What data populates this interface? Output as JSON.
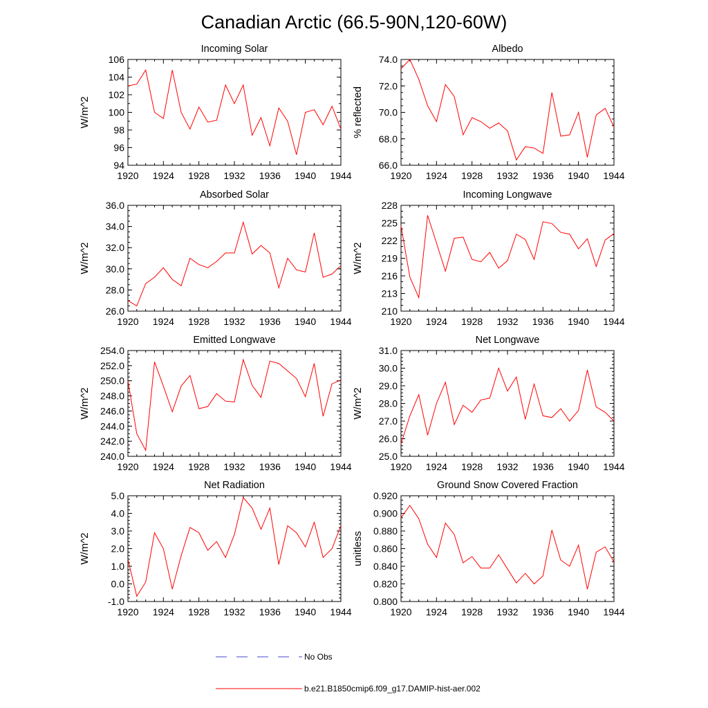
{
  "title": "Canadian Arctic (66.5-90N,120-60W)",
  "legend": [
    {
      "label": "No Obs",
      "color": "#4444cc",
      "style": "dashed"
    },
    {
      "label": "b.e21.B1850cmip6.f09_g17.DAMIP-hist-aer.002",
      "color": "#ff0000",
      "style": "solid"
    }
  ],
  "chart_data": [
    {
      "type": "line",
      "title": "Incoming Solar",
      "ylabel": "W/m^2",
      "xlim": [
        1920,
        1944
      ],
      "ylim": [
        94,
        106
      ],
      "xticks": [
        1920,
        1924,
        1928,
        1932,
        1936,
        1940,
        1944
      ],
      "yticks": [
        94,
        96,
        98,
        100,
        102,
        104,
        106
      ],
      "ytick_labels": [
        "94",
        "96",
        "98",
        "100",
        "102",
        "104",
        "106"
      ],
      "ytick_minor_step": 1,
      "grid": false,
      "series": [
        {
          "color": "#ff0000",
          "x": [
            1920,
            1921,
            1922,
            1923,
            1924,
            1925,
            1926,
            1927,
            1928,
            1929,
            1930,
            1931,
            1932,
            1933,
            1934,
            1935,
            1936,
            1937,
            1938,
            1939,
            1940,
            1941,
            1942,
            1943,
            1944
          ],
          "y": [
            103.0,
            103.2,
            104.8,
            100.0,
            99.3,
            104.8,
            100.0,
            98.1,
            100.6,
            98.9,
            99.1,
            103.1,
            101.0,
            103.1,
            97.4,
            99.4,
            96.2,
            100.5,
            99.0,
            95.2,
            100.0,
            100.3,
            98.6,
            100.7,
            98.1
          ]
        }
      ]
    },
    {
      "type": "line",
      "title": "Albedo",
      "ylabel": "% reflected",
      "xlim": [
        1920,
        1944
      ],
      "ylim": [
        66.0,
        74.0
      ],
      "xticks": [
        1920,
        1924,
        1928,
        1932,
        1936,
        1940,
        1944
      ],
      "yticks": [
        66,
        68,
        70,
        72,
        74
      ],
      "ytick_labels": [
        "66.0",
        "68.0",
        "70.0",
        "72.0",
        "74.0"
      ],
      "ytick_minor_step": 0.5,
      "grid": false,
      "series": [
        {
          "color": "#ff0000",
          "x": [
            1920,
            1921,
            1922,
            1923,
            1924,
            1925,
            1926,
            1927,
            1928,
            1929,
            1930,
            1931,
            1932,
            1933,
            1934,
            1935,
            1936,
            1937,
            1938,
            1939,
            1940,
            1941,
            1942,
            1943,
            1944
          ],
          "y": [
            73.3,
            74.0,
            72.5,
            70.5,
            69.3,
            72.1,
            71.2,
            68.3,
            69.6,
            69.3,
            68.8,
            69.2,
            68.6,
            66.4,
            67.4,
            67.3,
            66.9,
            71.5,
            68.2,
            68.3,
            70.0,
            66.6,
            69.8,
            70.3,
            68.9
          ]
        }
      ]
    },
    {
      "type": "line",
      "title": "Absorbed Solar",
      "ylabel": "W/m^2",
      "xlim": [
        1920,
        1944
      ],
      "ylim": [
        26.0,
        36.0
      ],
      "xticks": [
        1920,
        1924,
        1928,
        1932,
        1936,
        1940,
        1944
      ],
      "yticks": [
        26,
        28,
        30,
        32,
        34,
        36
      ],
      "ytick_labels": [
        "26.0",
        "28.0",
        "30.0",
        "32.0",
        "34.0",
        "36.0"
      ],
      "ytick_minor_step": 0.5,
      "grid": false,
      "series": [
        {
          "color": "#ff0000",
          "x": [
            1920,
            1921,
            1922,
            1923,
            1924,
            1925,
            1926,
            1927,
            1928,
            1929,
            1930,
            1931,
            1932,
            1933,
            1934,
            1935,
            1936,
            1937,
            1938,
            1939,
            1940,
            1941,
            1942,
            1943,
            1944
          ],
          "y": [
            27.0,
            26.5,
            28.6,
            29.2,
            30.1,
            29.0,
            28.4,
            31.0,
            30.4,
            30.1,
            30.7,
            31.5,
            31.5,
            34.4,
            31.4,
            32.2,
            31.5,
            28.2,
            31.0,
            29.9,
            29.7,
            33.4,
            29.2,
            29.5,
            30.3
          ]
        }
      ]
    },
    {
      "type": "line",
      "title": "Incoming Longwave",
      "ylabel": "W/m^2",
      "xlim": [
        1920,
        1944
      ],
      "ylim": [
        210,
        228
      ],
      "xticks": [
        1920,
        1924,
        1928,
        1932,
        1936,
        1940,
        1944
      ],
      "yticks": [
        210,
        213,
        216,
        219,
        222,
        225,
        228
      ],
      "ytick_labels": [
        "210",
        "213",
        "216",
        "219",
        "222",
        "225",
        "228"
      ],
      "ytick_minor_step": 1,
      "grid": false,
      "series": [
        {
          "color": "#ff0000",
          "x": [
            1920,
            1921,
            1922,
            1923,
            1924,
            1925,
            1926,
            1927,
            1928,
            1929,
            1930,
            1931,
            1932,
            1933,
            1934,
            1935,
            1936,
            1937,
            1938,
            1939,
            1940,
            1941,
            1942,
            1943,
            1944
          ],
          "y": [
            224.5,
            215.8,
            212.3,
            226.3,
            221.6,
            216.8,
            222.4,
            222.6,
            218.8,
            218.4,
            220.0,
            217.3,
            218.6,
            223.1,
            222.2,
            218.8,
            225.2,
            224.9,
            223.4,
            223.1,
            220.6,
            222.3,
            217.6,
            222.1,
            223.2
          ]
        }
      ]
    },
    {
      "type": "line",
      "title": "Emitted Longwave",
      "ylabel": "W/m^2",
      "xlim": [
        1920,
        1944
      ],
      "ylim": [
        240.0,
        254.0
      ],
      "xticks": [
        1920,
        1924,
        1928,
        1932,
        1936,
        1940,
        1944
      ],
      "yticks": [
        240,
        242,
        244,
        246,
        248,
        250,
        252,
        254
      ],
      "ytick_labels": [
        "240.0",
        "242.0",
        "244.0",
        "246.0",
        "248.0",
        "250.0",
        "252.0",
        "254.0"
      ],
      "ytick_minor_step": 0.5,
      "grid": false,
      "series": [
        {
          "color": "#ff0000",
          "x": [
            1920,
            1921,
            1922,
            1923,
            1924,
            1925,
            1926,
            1927,
            1928,
            1929,
            1930,
            1931,
            1932,
            1933,
            1934,
            1935,
            1936,
            1937,
            1938,
            1939,
            1940,
            1941,
            1942,
            1943,
            1944
          ],
          "y": [
            250.0,
            243.0,
            240.8,
            252.5,
            249.3,
            245.9,
            249.3,
            250.7,
            246.3,
            246.6,
            248.3,
            247.3,
            247.2,
            252.8,
            249.4,
            247.8,
            252.6,
            252.3,
            251.3,
            250.3,
            247.9,
            252.3,
            245.3,
            249.6,
            250.1
          ]
        }
      ]
    },
    {
      "type": "line",
      "title": "Net Longwave",
      "ylabel": "W/m^2",
      "xlim": [
        1920,
        1944
      ],
      "ylim": [
        25.0,
        31.0
      ],
      "xticks": [
        1920,
        1924,
        1928,
        1932,
        1936,
        1940,
        1944
      ],
      "yticks": [
        25,
        26,
        27,
        28,
        29,
        30,
        31
      ],
      "ytick_labels": [
        "25.0",
        "26.0",
        "27.0",
        "28.0",
        "29.0",
        "30.0",
        "31.0"
      ],
      "ytick_minor_step": 0.2,
      "grid": false,
      "series": [
        {
          "color": "#ff0000",
          "x": [
            1920,
            1921,
            1922,
            1923,
            1924,
            1925,
            1926,
            1927,
            1928,
            1929,
            1930,
            1931,
            1932,
            1933,
            1934,
            1935,
            1936,
            1937,
            1938,
            1939,
            1940,
            1941,
            1942,
            1943,
            1944
          ],
          "y": [
            25.7,
            27.3,
            28.5,
            26.2,
            28.0,
            29.2,
            26.8,
            27.9,
            27.5,
            28.2,
            28.3,
            30.0,
            28.7,
            29.5,
            27.1,
            29.1,
            27.3,
            27.2,
            27.7,
            27.0,
            27.6,
            29.9,
            27.8,
            27.5,
            27.0
          ]
        }
      ]
    },
    {
      "type": "line",
      "title": "Net Radiation",
      "ylabel": "W/m^2",
      "xlim": [
        1920,
        1944
      ],
      "ylim": [
        -1.0,
        5.0
      ],
      "xticks": [
        1920,
        1924,
        1928,
        1932,
        1936,
        1940,
        1944
      ],
      "yticks": [
        -1,
        0,
        1,
        2,
        3,
        4,
        5
      ],
      "ytick_labels": [
        "-1.0",
        "0.0",
        "1.0",
        "2.0",
        "3.0",
        "4.0",
        "5.0"
      ],
      "ytick_minor_step": 0.2,
      "grid": false,
      "series": [
        {
          "color": "#ff0000",
          "x": [
            1920,
            1921,
            1922,
            1923,
            1924,
            1925,
            1926,
            1927,
            1928,
            1929,
            1930,
            1931,
            1932,
            1933,
            1934,
            1935,
            1936,
            1937,
            1938,
            1939,
            1940,
            1941,
            1942,
            1943,
            1944
          ],
          "y": [
            1.4,
            -0.7,
            0.1,
            2.9,
            2.0,
            -0.3,
            1.6,
            3.2,
            2.9,
            1.9,
            2.4,
            1.5,
            2.8,
            4.9,
            4.3,
            3.1,
            4.3,
            1.1,
            3.3,
            2.9,
            2.1,
            3.5,
            1.5,
            2.0,
            3.3
          ]
        }
      ]
    },
    {
      "type": "line",
      "title": "Ground Snow Covered Fraction",
      "ylabel": "unitless",
      "xlim": [
        1920,
        1944
      ],
      "ylim": [
        0.8,
        0.92
      ],
      "xticks": [
        1920,
        1924,
        1928,
        1932,
        1936,
        1940,
        1944
      ],
      "yticks": [
        0.8,
        0.82,
        0.84,
        0.86,
        0.88,
        0.9,
        0.92
      ],
      "ytick_labels": [
        "0.800",
        "0.820",
        "0.840",
        "0.860",
        "0.880",
        "0.900",
        "0.920"
      ],
      "ytick_minor_step": 0.005,
      "grid": false,
      "series": [
        {
          "color": "#ff0000",
          "x": [
            1920,
            1921,
            1922,
            1923,
            1924,
            1925,
            1926,
            1927,
            1928,
            1929,
            1930,
            1931,
            1932,
            1933,
            1934,
            1935,
            1936,
            1937,
            1938,
            1939,
            1940,
            1941,
            1942,
            1943,
            1944
          ],
          "y": [
            0.895,
            0.909,
            0.894,
            0.865,
            0.85,
            0.889,
            0.876,
            0.844,
            0.851,
            0.838,
            0.838,
            0.853,
            0.837,
            0.821,
            0.832,
            0.82,
            0.829,
            0.881,
            0.847,
            0.84,
            0.864,
            0.814,
            0.856,
            0.862,
            0.845
          ]
        }
      ]
    }
  ]
}
